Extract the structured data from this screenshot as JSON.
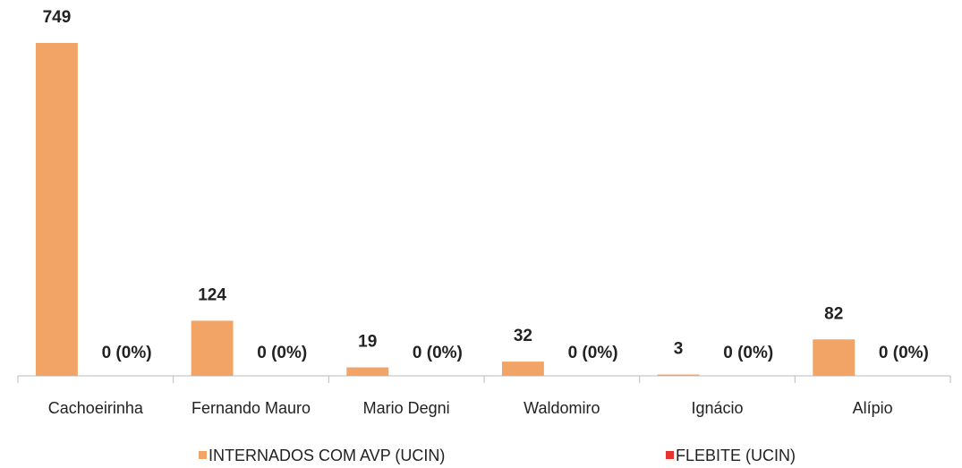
{
  "chart_data": {
    "type": "bar",
    "categories": [
      "Cachoeirinha",
      "Fernando Mauro",
      "Mario Degni",
      "Waldomiro",
      "Ignácio",
      "Alípio"
    ],
    "series": [
      {
        "name": "INTERNADOS COM AVP (UCIN)",
        "color": "#f2a467",
        "values": [
          749,
          124,
          19,
          32,
          3,
          82
        ]
      },
      {
        "name": "FLEBITE (UCIN)",
        "color": "#e8342c",
        "values": [
          0,
          0,
          0,
          0,
          0,
          0
        ],
        "value_labels": [
          "0 (0%)",
          "0 (0%)",
          "0 (0%)",
          "0 (0%)",
          "0 (0%)",
          "0 (0%)"
        ]
      }
    ]
  }
}
